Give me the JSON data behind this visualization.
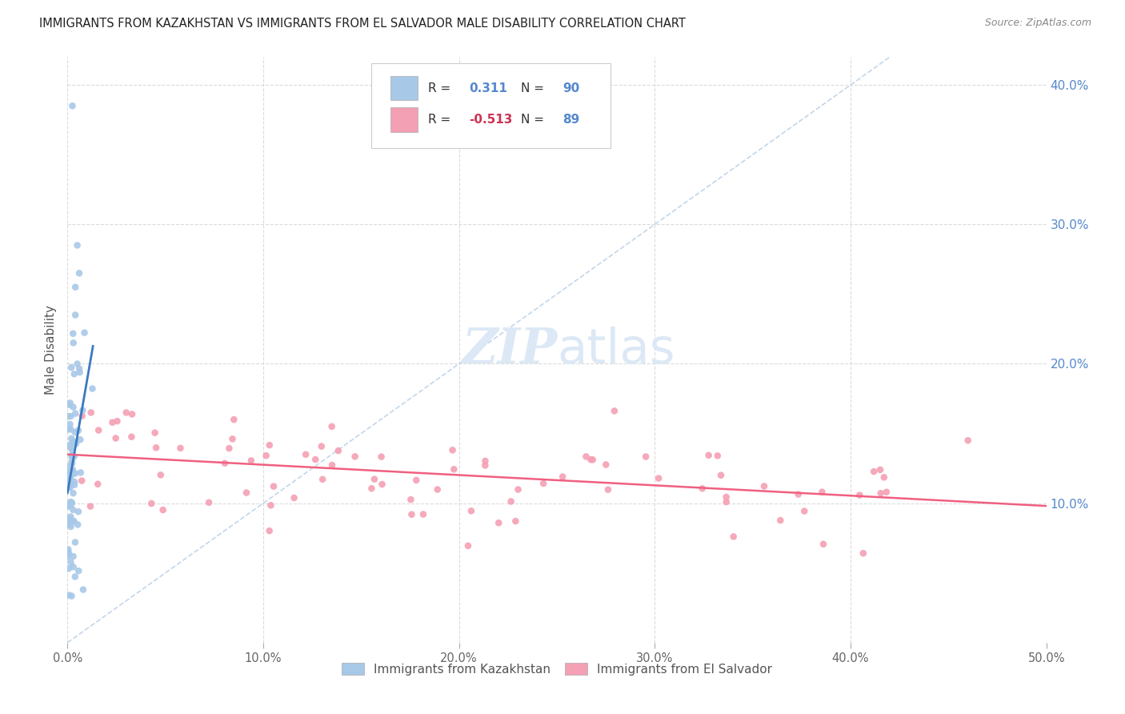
{
  "title": "IMMIGRANTS FROM KAZAKHSTAN VS IMMIGRANTS FROM EL SALVADOR MALE DISABILITY CORRELATION CHART",
  "source": "Source: ZipAtlas.com",
  "ylabel": "Male Disability",
  "xlim": [
    0.0,
    0.5
  ],
  "ylim": [
    0.0,
    0.42
  ],
  "xticks": [
    0.0,
    0.1,
    0.2,
    0.3,
    0.4,
    0.5
  ],
  "yticks": [
    0.0,
    0.1,
    0.2,
    0.3,
    0.4
  ],
  "xtick_labels": [
    "0.0%",
    "10.0%",
    "20.0%",
    "30.0%",
    "40.0%",
    "50.0%"
  ],
  "ytick_labels_right": [
    "",
    "10.0%",
    "20.0%",
    "30.0%",
    "40.0%"
  ],
  "kazakhstan_color": "#a8c8e8",
  "el_salvador_color": "#f4a0b4",
  "kazakhstan_line_color": "#3a7abf",
  "el_salvador_line_color": "#f06080",
  "dashed_line_color": "#b8cfe8",
  "watermark_text": "ZIPatlas",
  "watermark_color": "#dce8f5",
  "background_color": "#ffffff",
  "grid_color": "#d8d8d8",
  "right_tick_color": "#5588cc",
  "title_color": "#222222",
  "source_color": "#888888",
  "ylabel_color": "#555555",
  "legend_r1_val": "0.311",
  "legend_r1_n": "90",
  "legend_r2_val": "-0.513",
  "legend_r2_n": "89",
  "legend_val_color": "#5588cc",
  "legend_neg_color": "#cc3355"
}
